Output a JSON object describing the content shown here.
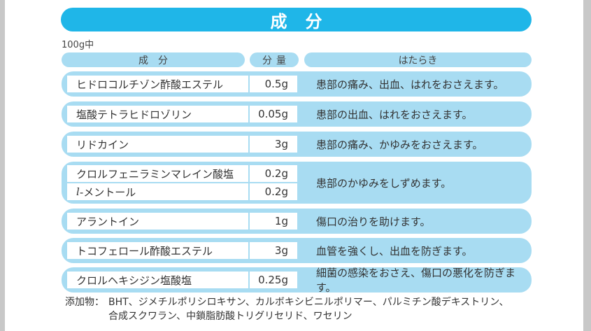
{
  "title": "成分",
  "per_amount": "100g中",
  "headers": {
    "name": "成分",
    "amount": "分量",
    "function": "はたらき"
  },
  "rows": [
    {
      "name": "ヒドロコルチゾン酢酸エステル",
      "amount": "0.5g",
      "function": "患部の痛み、出血、はれをおさえます。"
    },
    {
      "name": "塩酸テトラヒドロゾリン",
      "amount": "0.05g",
      "function": "患部の出血、はれをおさえます。"
    },
    {
      "name": "リドカイン",
      "amount": "3g",
      "function": "患部の痛み、かゆみをおさえます。"
    },
    {
      "items": [
        {
          "name": "クロルフェニラミンマレイン酸塩",
          "amount": "0.2g"
        },
        {
          "name_prefix": "l",
          "name": "-メントール",
          "amount": "0.2g"
        }
      ],
      "function": "患部のかゆみをしずめます。"
    },
    {
      "name": "アラントイン",
      "amount": "1g",
      "function": "傷口の治りを助けます。"
    },
    {
      "name": "トコフェロール酢酸エステル",
      "amount": "3g",
      "function": "血管を強くし、出血を防ぎます。"
    },
    {
      "name": "クロルヘキシジン塩酸塩",
      "amount": "0.25g",
      "function": "細菌の感染をおさえ、傷口の悪化を防ぎます。"
    }
  ],
  "additives": {
    "label": "添加物：",
    "line1": "BHT、ジメチルポリシロキサン、カルボキシビニルポリマー、パルミチン酸デキストリン、",
    "line2": "合成スクワラン、中鎖脂肪酸トリグリセリド、ワセリン"
  }
}
